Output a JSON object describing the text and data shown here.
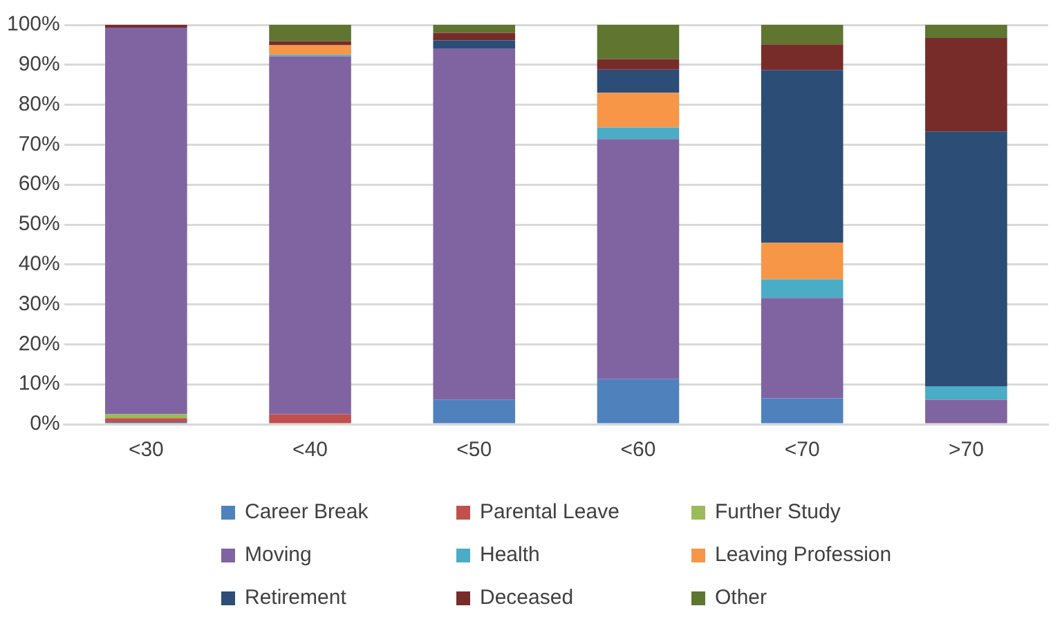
{
  "chart_data": {
    "type": "bar",
    "stacked": true,
    "categories": [
      "<30",
      "<40",
      "<50",
      "<60",
      "<70",
      ">70"
    ],
    "ylim": [
      0,
      100
    ],
    "yticks": [
      {
        "value": 0,
        "label": "0%"
      },
      {
        "value": 10,
        "label": "10%"
      },
      {
        "value": 20,
        "label": "20%"
      },
      {
        "value": 30,
        "label": "30%"
      },
      {
        "value": 40,
        "label": "40%"
      },
      {
        "value": 50,
        "label": "50%"
      },
      {
        "value": 60,
        "label": "60%"
      },
      {
        "value": 70,
        "label": "70%"
      },
      {
        "value": 80,
        "label": "80%"
      },
      {
        "value": 90,
        "label": "90%"
      },
      {
        "value": 100,
        "label": "100%"
      }
    ],
    "grid": "y",
    "legend": "bottom",
    "series": [
      {
        "name": "Career Break",
        "color": "#4f81bd",
        "values": [
          0.5,
          0,
          6.1,
          11.3,
          6.5,
          0
        ]
      },
      {
        "name": "Parental Leave",
        "color": "#c0504d",
        "values": [
          1.0,
          2.5,
          0,
          0,
          0,
          0
        ]
      },
      {
        "name": "Further Study",
        "color": "#9bbb59",
        "values": [
          1.0,
          0,
          0,
          0,
          0,
          0
        ]
      },
      {
        "name": "Moving",
        "color": "#8064a2",
        "values": [
          96.8,
          89.6,
          87.9,
          60.1,
          25.1,
          6.1
        ]
      },
      {
        "name": "Health",
        "color": "#4bacc6",
        "values": [
          0,
          0.4,
          0,
          2.9,
          4.7,
          3.4
        ]
      },
      {
        "name": "Leaving Profession",
        "color": "#f79646",
        "values": [
          0,
          2.4,
          0,
          8.7,
          9.1,
          0
        ]
      },
      {
        "name": "Retirement",
        "color": "#2c4d75",
        "values": [
          0,
          0,
          2.1,
          5.8,
          43.3,
          63.8
        ]
      },
      {
        "name": "Deceased",
        "color": "#772c2a",
        "values": [
          0.7,
          1.0,
          1.9,
          2.6,
          6.4,
          23.4
        ]
      },
      {
        "name": "Other",
        "color": "#5f7530",
        "values": [
          0,
          4.1,
          2.0,
          8.6,
          4.9,
          3.3
        ]
      }
    ]
  }
}
